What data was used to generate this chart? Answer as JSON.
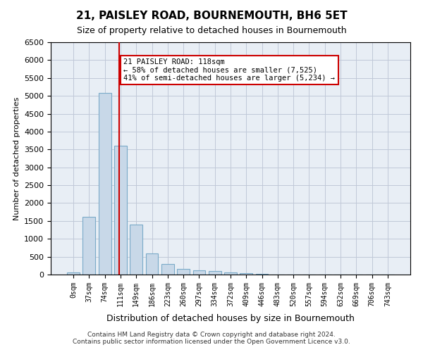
{
  "title": "21, PAISLEY ROAD, BOURNEMOUTH, BH6 5ET",
  "subtitle": "Size of property relative to detached houses in Bournemouth",
  "xlabel": "Distribution of detached houses by size in Bournemouth",
  "ylabel": "Number of detached properties",
  "footer_line1": "Contains HM Land Registry data © Crown copyright and database right 2024.",
  "footer_line2": "Contains public sector information licensed under the Open Government Licence v3.0.",
  "bar_labels": [
    "0sqm",
    "37sqm",
    "74sqm",
    "111sqm",
    "149sqm",
    "186sqm",
    "223sqm",
    "260sqm",
    "297sqm",
    "334sqm",
    "372sqm",
    "409sqm",
    "446sqm",
    "483sqm",
    "520sqm",
    "557sqm",
    "594sqm",
    "632sqm",
    "669sqm",
    "706sqm",
    "743sqm"
  ],
  "bar_values": [
    60,
    1620,
    5080,
    3600,
    1400,
    600,
    290,
    150,
    120,
    90,
    55,
    30,
    10,
    5,
    3,
    2,
    1,
    1,
    1,
    0,
    0
  ],
  "bar_color": "#c8d8e8",
  "bar_edgecolor": "#7aaac8",
  "ylim": [
    0,
    6500
  ],
  "yticks": [
    0,
    500,
    1000,
    1500,
    2000,
    2500,
    3000,
    3500,
    4000,
    4500,
    5000,
    5500,
    6000,
    6500
  ],
  "property_size": "118sqm",
  "property_label": "21 PAISLEY ROAD: 118sqm",
  "vline_x_index": 3,
  "vline_color": "#cc0000",
  "annotation_line1": "21 PAISLEY ROAD: 118sqm",
  "annotation_line2": "← 58% of detached houses are smaller (7,525)",
  "annotation_line3": "41% of semi-detached houses are larger (5,234) →",
  "annotation_box_color": "#ffffff",
  "annotation_box_edgecolor": "#cc0000",
  "grid_color": "#c0c8d8",
  "background_color": "#e8eef5"
}
